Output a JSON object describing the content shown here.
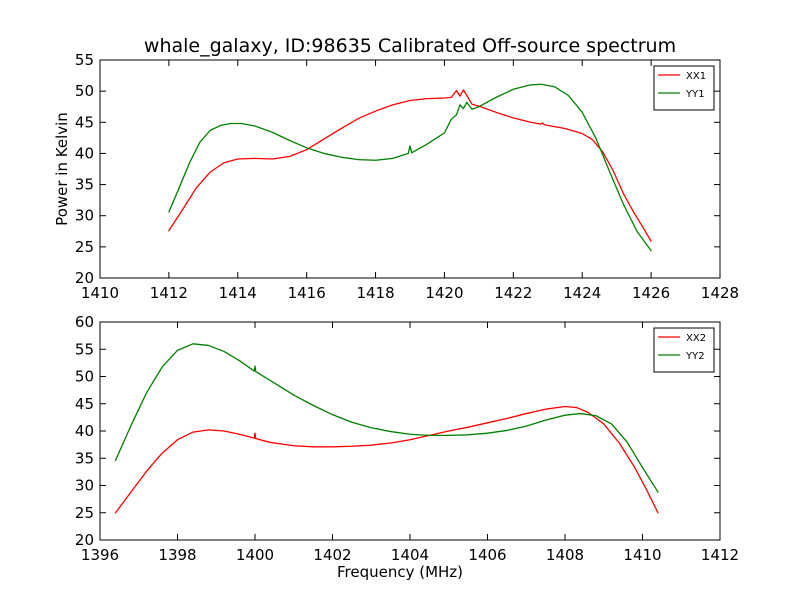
{
  "title": "whale_galaxy, ID:98635 Calibrated Off-source spectrum",
  "chart_data": [
    {
      "type": "line",
      "title": "whale_galaxy, ID:98635 Calibrated Off-source spectrum",
      "xlabel": "",
      "ylabel": "Power in Kelvin",
      "xlim": [
        1410,
        1428
      ],
      "ylim": [
        20,
        55
      ],
      "xticks": [
        1410,
        1412,
        1414,
        1416,
        1418,
        1420,
        1422,
        1424,
        1426,
        1428
      ],
      "yticks": [
        20,
        25,
        30,
        35,
        40,
        45,
        50,
        55
      ],
      "grid": false,
      "legend": "top-right",
      "series": [
        {
          "name": "XX1",
          "color": "#ff0000",
          "points": [
            [
              1412.0,
              27.6
            ],
            [
              1412.4,
              31.0
            ],
            [
              1412.8,
              34.5
            ],
            [
              1413.2,
              37.0
            ],
            [
              1413.6,
              38.5
            ],
            [
              1414.0,
              39.1
            ],
            [
              1414.5,
              39.2
            ],
            [
              1415.0,
              39.1
            ],
            [
              1415.5,
              39.5
            ],
            [
              1416.0,
              40.6
            ],
            [
              1416.5,
              42.3
            ],
            [
              1417.0,
              44.0
            ],
            [
              1417.5,
              45.6
            ],
            [
              1418.0,
              46.8
            ],
            [
              1418.5,
              47.8
            ],
            [
              1419.0,
              48.5
            ],
            [
              1419.5,
              48.8
            ],
            [
              1420.0,
              48.9
            ],
            [
              1420.2,
              49.0
            ],
            [
              1420.35,
              50.1
            ],
            [
              1420.45,
              49.2
            ],
            [
              1420.55,
              50.2
            ],
            [
              1420.65,
              49.3
            ],
            [
              1420.8,
              47.9
            ],
            [
              1421.0,
              47.6
            ],
            [
              1421.5,
              46.6
            ],
            [
              1422.0,
              45.7
            ],
            [
              1422.5,
              45.0
            ],
            [
              1422.8,
              44.7
            ],
            [
              1422.85,
              44.9
            ],
            [
              1422.9,
              44.6
            ],
            [
              1423.0,
              44.5
            ],
            [
              1423.5,
              44.0
            ],
            [
              1424.0,
              43.2
            ],
            [
              1424.3,
              42.2
            ],
            [
              1424.6,
              40.2
            ],
            [
              1424.9,
              37.2
            ],
            [
              1425.2,
              33.5
            ],
            [
              1425.5,
              30.5
            ],
            [
              1425.8,
              27.8
            ],
            [
              1426.0,
              25.9
            ]
          ]
        },
        {
          "name": "YY1",
          "color": "#008000",
          "points": [
            [
              1412.0,
              30.6
            ],
            [
              1412.3,
              34.5
            ],
            [
              1412.6,
              38.5
            ],
            [
              1412.9,
              41.8
            ],
            [
              1413.2,
              43.7
            ],
            [
              1413.5,
              44.5
            ],
            [
              1413.8,
              44.8
            ],
            [
              1414.1,
              44.8
            ],
            [
              1414.5,
              44.4
            ],
            [
              1415.0,
              43.4
            ],
            [
              1415.5,
              42.1
            ],
            [
              1416.0,
              40.9
            ],
            [
              1416.5,
              40.0
            ],
            [
              1417.0,
              39.4
            ],
            [
              1417.5,
              39.0
            ],
            [
              1418.0,
              38.9
            ],
            [
              1418.5,
              39.2
            ],
            [
              1418.95,
              40.0
            ],
            [
              1419.0,
              41.2
            ],
            [
              1419.05,
              40.1
            ],
            [
              1419.5,
              41.5
            ],
            [
              1420.0,
              43.3
            ],
            [
              1420.2,
              45.5
            ],
            [
              1420.35,
              46.2
            ],
            [
              1420.45,
              47.8
            ],
            [
              1420.55,
              47.2
            ],
            [
              1420.65,
              48.2
            ],
            [
              1420.8,
              47.1
            ],
            [
              1421.0,
              47.5
            ],
            [
              1421.5,
              49.0
            ],
            [
              1422.0,
              50.3
            ],
            [
              1422.5,
              51.0
            ],
            [
              1422.8,
              51.1
            ],
            [
              1423.2,
              50.7
            ],
            [
              1423.6,
              49.3
            ],
            [
              1424.0,
              46.6
            ],
            [
              1424.4,
              42.4
            ],
            [
              1424.8,
              37.0
            ],
            [
              1425.2,
              31.8
            ],
            [
              1425.6,
              27.4
            ],
            [
              1426.0,
              24.4
            ]
          ]
        }
      ]
    },
    {
      "type": "line",
      "title": "",
      "xlabel": "Frequency (MHz)",
      "ylabel": "",
      "xlim": [
        1396,
        1412
      ],
      "ylim": [
        20,
        60
      ],
      "xticks": [
        1396,
        1398,
        1400,
        1402,
        1404,
        1406,
        1408,
        1410,
        1412
      ],
      "yticks": [
        20,
        25,
        30,
        35,
        40,
        45,
        50,
        55,
        60
      ],
      "grid": false,
      "legend": "top-right",
      "series": [
        {
          "name": "XX2",
          "color": "#ff0000",
          "points": [
            [
              1396.4,
              25.0
            ],
            [
              1396.8,
              28.8
            ],
            [
              1397.2,
              32.6
            ],
            [
              1397.6,
              35.9
            ],
            [
              1398.0,
              38.4
            ],
            [
              1398.4,
              39.8
            ],
            [
              1398.8,
              40.2
            ],
            [
              1399.2,
              40.0
            ],
            [
              1399.6,
              39.4
            ],
            [
              1399.98,
              38.7
            ],
            [
              1400.0,
              39.6
            ],
            [
              1400.02,
              38.6
            ],
            [
              1400.4,
              37.9
            ],
            [
              1401.0,
              37.3
            ],
            [
              1401.5,
              37.1
            ],
            [
              1402.0,
              37.1
            ],
            [
              1402.5,
              37.2
            ],
            [
              1403.0,
              37.4
            ],
            [
              1403.5,
              37.8
            ],
            [
              1404.0,
              38.4
            ],
            [
              1404.5,
              39.2
            ],
            [
              1405.0,
              40.0
            ],
            [
              1405.5,
              40.7
            ],
            [
              1406.0,
              41.5
            ],
            [
              1406.5,
              42.3
            ],
            [
              1407.0,
              43.2
            ],
            [
              1407.5,
              44.0
            ],
            [
              1408.0,
              44.5
            ],
            [
              1408.3,
              44.3
            ],
            [
              1408.6,
              43.4
            ],
            [
              1409.0,
              41.3
            ],
            [
              1409.4,
              37.8
            ],
            [
              1409.8,
              33.3
            ],
            [
              1410.1,
              29.3
            ],
            [
              1410.4,
              25.0
            ]
          ]
        },
        {
          "name": "YY2",
          "color": "#008000",
          "points": [
            [
              1396.4,
              34.6
            ],
            [
              1396.8,
              41.0
            ],
            [
              1397.2,
              47.0
            ],
            [
              1397.6,
              51.7
            ],
            [
              1398.0,
              54.8
            ],
            [
              1398.4,
              56.0
            ],
            [
              1398.8,
              55.7
            ],
            [
              1399.2,
              54.6
            ],
            [
              1399.6,
              52.9
            ],
            [
              1399.98,
              51.0
            ],
            [
              1400.0,
              51.9
            ],
            [
              1400.02,
              50.9
            ],
            [
              1400.5,
              48.8
            ],
            [
              1401.0,
              46.6
            ],
            [
              1401.5,
              44.7
            ],
            [
              1402.0,
              43.0
            ],
            [
              1402.5,
              41.6
            ],
            [
              1403.0,
              40.6
            ],
            [
              1403.5,
              39.9
            ],
            [
              1404.0,
              39.4
            ],
            [
              1404.5,
              39.2
            ],
            [
              1405.0,
              39.2
            ],
            [
              1405.5,
              39.3
            ],
            [
              1406.0,
              39.6
            ],
            [
              1406.5,
              40.1
            ],
            [
              1407.0,
              40.9
            ],
            [
              1407.5,
              42.0
            ],
            [
              1408.0,
              42.9
            ],
            [
              1408.4,
              43.2
            ],
            [
              1408.8,
              42.8
            ],
            [
              1409.2,
              41.3
            ],
            [
              1409.6,
              38.0
            ],
            [
              1410.0,
              33.3
            ],
            [
              1410.4,
              28.8
            ]
          ]
        }
      ]
    }
  ]
}
